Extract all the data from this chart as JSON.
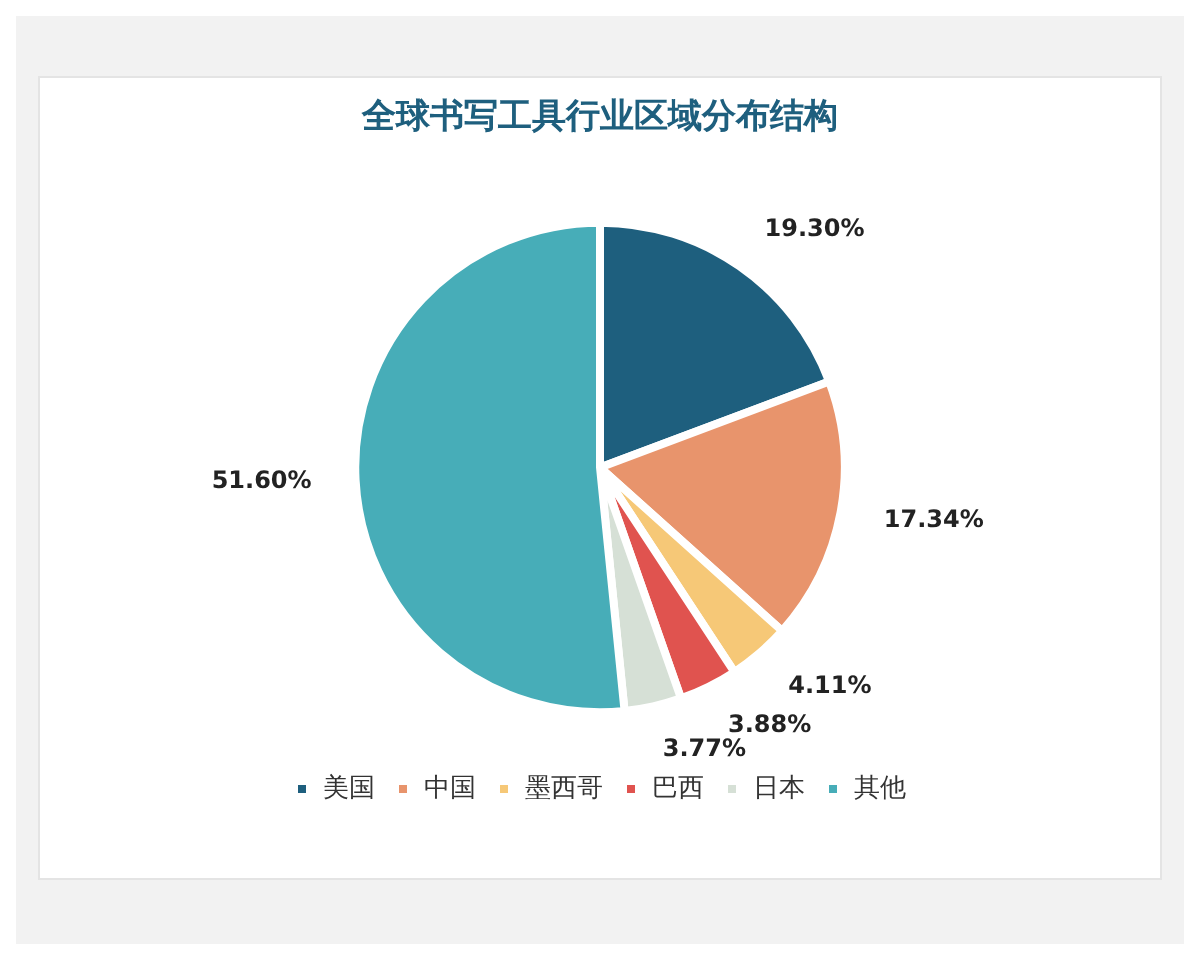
{
  "chart_data": {
    "type": "pie",
    "title": "全球书写工具行业区域分布结构",
    "categories": [
      "美国",
      "中国",
      "墨西哥",
      "巴西",
      "日本",
      "其他"
    ],
    "values": [
      19.3,
      17.34,
      4.11,
      3.88,
      3.77,
      51.6
    ],
    "value_labels": [
      "19.30%",
      "17.34%",
      "4.11%",
      "3.88%",
      "3.77%",
      "51.60%"
    ],
    "colors": [
      "#1e5f7e",
      "#e8946c",
      "#f6c877",
      "#e0534f",
      "#d6e0d6",
      "#47adb8"
    ],
    "legend": "bottom"
  }
}
